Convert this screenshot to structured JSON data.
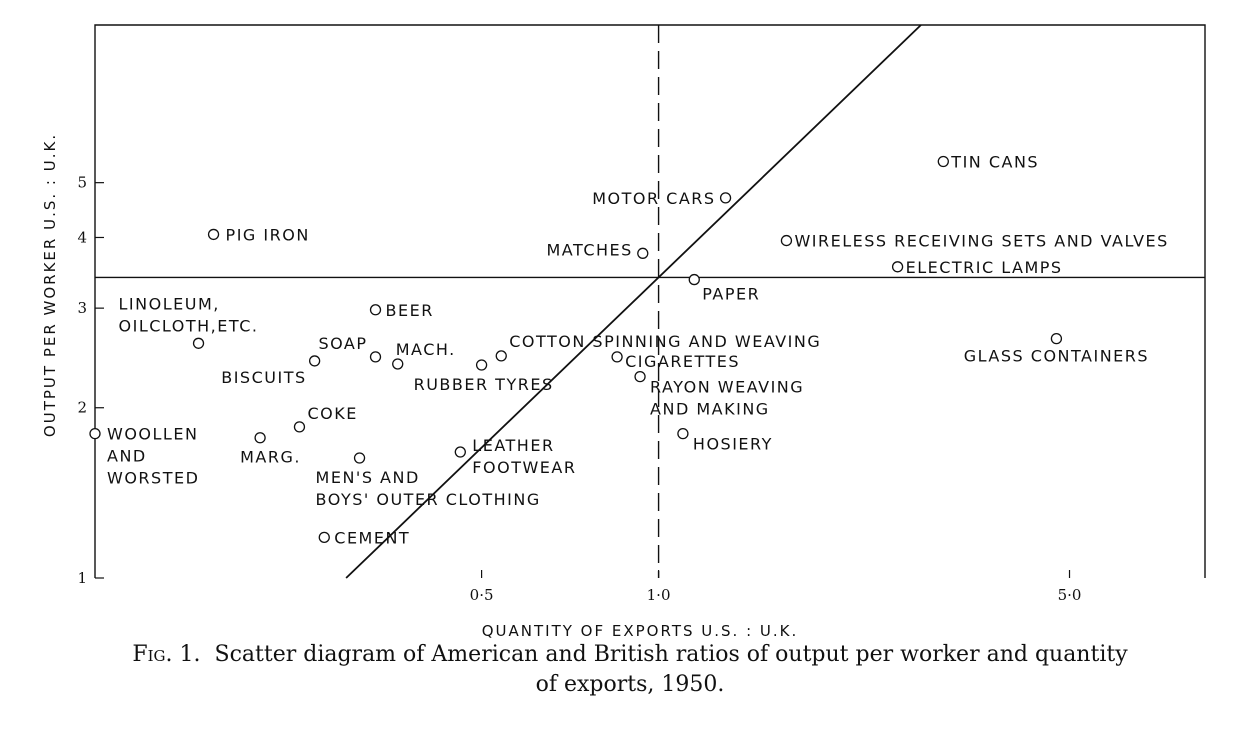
{
  "chart_data": {
    "type": "scatter",
    "xlabel": "QUANTITY OF EXPORTS  U.S. : U.K.",
    "ylabel": "OUTPUT PER WORKER  U.S. : U.K.",
    "x_scale": "log",
    "y_scale": "log",
    "xlim": [
      0.11,
      8.5
    ],
    "ylim": [
      1,
      9.5
    ],
    "x_ticks": [
      {
        "value": 0.5,
        "label": "0·5"
      },
      {
        "value": 1.0,
        "label": "1·0"
      },
      {
        "value": 5.0,
        "label": "5·0"
      }
    ],
    "y_ticks": [
      {
        "value": 1,
        "label": "1"
      },
      {
        "value": 2,
        "label": "2"
      },
      {
        "value": 3,
        "label": "3"
      },
      {
        "value": 4,
        "label": "4"
      },
      {
        "value": 5,
        "label": "5"
      }
    ],
    "reference_lines": {
      "vertical_x": 1.0,
      "horizontal_y": 3.4,
      "diagonal": "y = 3.4x"
    },
    "points": [
      {
        "x": 0.11,
        "y": 1.8,
        "label": [
          "WOOLLEN",
          "AND",
          "WORSTED"
        ]
      },
      {
        "x": 0.165,
        "y": 2.6,
        "label": [
          "LINOLEUM,",
          "OILCLOTH,ETC."
        ]
      },
      {
        "x": 0.175,
        "y": 4.05,
        "label": [
          "PIG IRON"
        ]
      },
      {
        "x": 0.21,
        "y": 1.77,
        "label": [
          "MARG."
        ]
      },
      {
        "x": 0.245,
        "y": 1.85,
        "label": [
          "COKE"
        ]
      },
      {
        "x": 0.26,
        "y": 2.42,
        "label": [
          "BISCUITS"
        ]
      },
      {
        "x": 0.27,
        "y": 1.18,
        "label": [
          "CEMENT"
        ]
      },
      {
        "x": 0.31,
        "y": 1.63,
        "label": [
          "MEN'S AND",
          "BOYS' OUTER CLOTHING"
        ]
      },
      {
        "x": 0.33,
        "y": 2.98,
        "label": [
          "BEER"
        ]
      },
      {
        "x": 0.33,
        "y": 2.46,
        "label": [
          "SOAP"
        ]
      },
      {
        "x": 0.36,
        "y": 2.39,
        "label": [
          "MACH."
        ]
      },
      {
        "x": 0.46,
        "y": 1.67,
        "label": [
          "LEATHER",
          "FOOTWEAR"
        ]
      },
      {
        "x": 0.5,
        "y": 2.38,
        "label": [
          "RUBBER TYRES"
        ]
      },
      {
        "x": 0.54,
        "y": 2.47,
        "label": [
          "COTTON SPINNING AND WEAVING"
        ]
      },
      {
        "x": 0.85,
        "y": 2.46,
        "label": [
          "CIGARETTES"
        ]
      },
      {
        "x": 0.93,
        "y": 2.27,
        "label": [
          "RAYON WEAVING",
          "AND MAKING"
        ]
      },
      {
        "x": 0.94,
        "y": 3.75,
        "label": [
          "MATCHES"
        ]
      },
      {
        "x": 1.1,
        "y": 1.8,
        "label": [
          "HOSIERY"
        ]
      },
      {
        "x": 1.15,
        "y": 3.37,
        "label": [
          "PAPER"
        ]
      },
      {
        "x": 1.3,
        "y": 4.7,
        "label": [
          "MOTOR CARS"
        ]
      },
      {
        "x": 1.65,
        "y": 3.95,
        "label": [
          "WIRELESS RECEIVING SETS AND VALVES"
        ]
      },
      {
        "x": 2.55,
        "y": 3.55,
        "label": [
          "ELECTRIC LAMPS"
        ]
      },
      {
        "x": 3.05,
        "y": 5.45,
        "label": [
          "TIN CANS"
        ]
      },
      {
        "x": 4.75,
        "y": 2.65,
        "label": [
          "GLASS CONTAINERS"
        ]
      }
    ]
  },
  "caption": {
    "fig_tag": "Fig. 1.",
    "line1": "Scatter diagram of American and British ratios of output per worker and quantity",
    "line2": "of exports, 1950."
  }
}
